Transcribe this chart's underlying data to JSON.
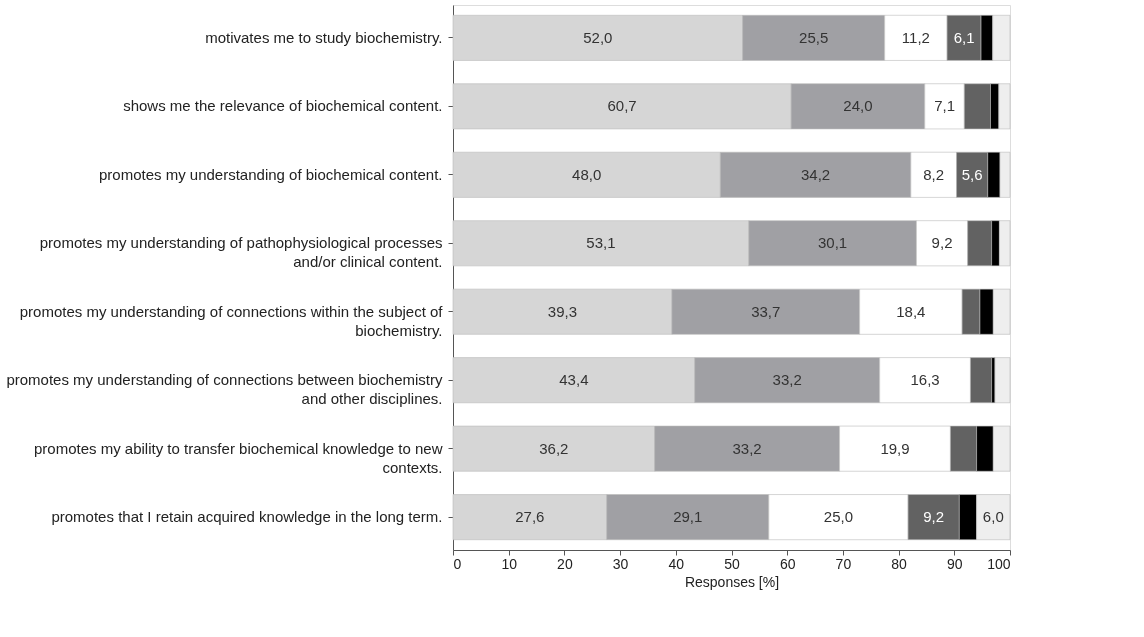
{
  "chart_data": {
    "type": "bar",
    "orientation": "horizontal",
    "stacked": true,
    "xlabel": "Responses [%]",
    "xlim": [
      0,
      100
    ],
    "xticks": [
      0,
      10,
      20,
      30,
      40,
      50,
      60,
      70,
      80,
      90,
      100
    ],
    "grid": false,
    "categories": [
      "motivates me to study biochemistry.",
      "shows me the relevance of biochemical content.",
      "promotes my understanding of biochemical content.",
      "promotes my understanding of pathophysiological processes and/or clinical content.",
      "promotes my understanding of connections within the subject of biochemistry.",
      "promotes my understanding of connections between biochemistry and other disciplines.",
      "promotes my ability to transfer biochemical knowledge to new contexts.",
      "promotes that I retain acquired knowledge in the long term."
    ],
    "series": [
      {
        "color": "#d6d6d6",
        "values": [
          52.0,
          60.7,
          48.0,
          53.1,
          39.3,
          43.4,
          36.2,
          27.6
        ],
        "value_labels": [
          "52,0",
          "60,7",
          "48,0",
          "53,1",
          "39,3",
          "43,4",
          "36,2",
          "27,6"
        ]
      },
      {
        "color": "#a0a0a4",
        "values": [
          25.5,
          24.0,
          34.2,
          30.1,
          33.7,
          33.2,
          33.2,
          29.1
        ],
        "value_labels": [
          "25,5",
          "24,0",
          "34,2",
          "30,1",
          "33,7",
          "33,2",
          "33,2",
          "29,1"
        ]
      },
      {
        "color": "#ffffff",
        "values": [
          11.2,
          7.1,
          8.2,
          9.2,
          18.4,
          16.3,
          19.9,
          25.0
        ],
        "value_labels": [
          "11,2",
          "7,1",
          "8,2",
          "9,2",
          "18,4",
          "16,3",
          "19,9",
          "25,0"
        ]
      },
      {
        "color": "#626262",
        "values": [
          6.1,
          4.7,
          5.6,
          4.3,
          3.2,
          3.8,
          4.7,
          9.2
        ],
        "value_labels": [
          "6,1",
          null,
          "5,6",
          null,
          null,
          null,
          null,
          "9,2"
        ]
      },
      {
        "color": "#000000",
        "values": [
          2.1,
          1.5,
          2.2,
          1.4,
          2.4,
          0.6,
          3.0,
          3.1
        ],
        "value_labels": [
          null,
          null,
          null,
          null,
          null,
          null,
          null,
          null
        ]
      },
      {
        "color": "#eeeeee",
        "values": [
          3.1,
          2.0,
          1.8,
          1.9,
          3.0,
          2.7,
          3.0,
          6.0
        ],
        "value_labels": [
          null,
          null,
          null,
          null,
          null,
          null,
          null,
          "6,0"
        ]
      }
    ]
  }
}
